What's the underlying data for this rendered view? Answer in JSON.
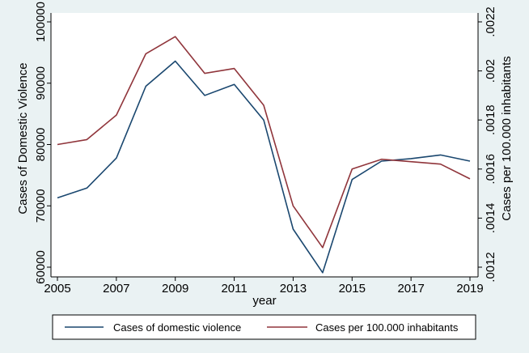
{
  "chart_data": {
    "type": "line",
    "title": "",
    "xlabel": "year",
    "ylabel_left": "Cases of Domestic Violence",
    "ylabel_right": "Cases per 100.000 inhabitants",
    "x": [
      2005,
      2006,
      2007,
      2008,
      2009,
      2010,
      2011,
      2012,
      2013,
      2014,
      2015,
      2016,
      2017,
      2018,
      2019
    ],
    "xlim": [
      2005,
      2019
    ],
    "xticks": [
      2005,
      2007,
      2009,
      2011,
      2013,
      2015,
      2017,
      2019
    ],
    "xtick_labels": [
      "2005",
      "2007",
      "2009",
      "2011",
      "2013",
      "2015",
      "2017",
      "2019"
    ],
    "ylim_left": [
      60000,
      100000
    ],
    "yticks_left": [
      60000,
      70000,
      80000,
      90000,
      100000
    ],
    "ytick_labels_left": [
      "60000",
      "70000",
      "80000",
      "90000",
      "100000"
    ],
    "ylim_right": [
      0.0012,
      0.0022
    ],
    "yticks_right": [
      0.0012,
      0.0014,
      0.0016,
      0.0018,
      0.002,
      0.0022
    ],
    "ytick_labels_right": [
      ".0012",
      ".0014",
      ".0016",
      ".0018",
      ".002",
      ".0022"
    ],
    "grid": false,
    "legend_position": "bottom",
    "series": [
      {
        "name": "Cases of domestic violence",
        "axis": "left",
        "color": "#1a476f",
        "values": [
          71300,
          72900,
          77800,
          89500,
          93600,
          88000,
          89800,
          84000,
          66200,
          59100,
          74300,
          77300,
          77700,
          78300,
          77300
        ]
      },
      {
        "name": "Cases per 100.000 inhabitants",
        "axis": "right",
        "color": "#90353b",
        "values": [
          0.0017,
          0.00172,
          0.00182,
          0.00207,
          0.00214,
          0.00199,
          0.00201,
          0.00186,
          0.00145,
          0.00128,
          0.0016,
          0.00164,
          0.00163,
          0.00162,
          0.00156
        ]
      }
    ]
  },
  "legend": {
    "items": [
      "Cases of domestic violence",
      "Cases per 100.000 inhabitants"
    ]
  }
}
